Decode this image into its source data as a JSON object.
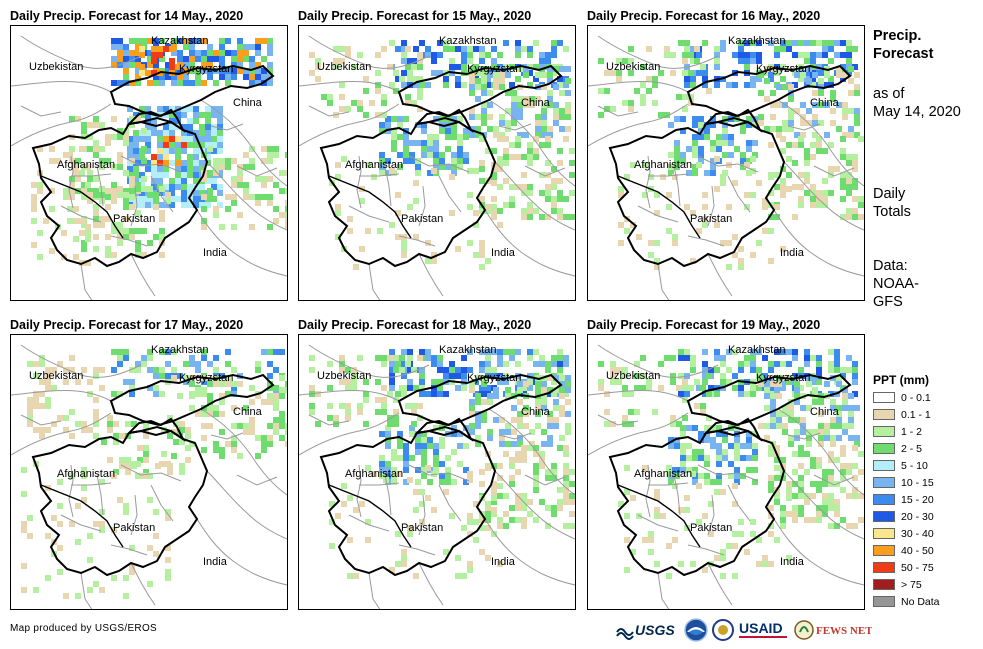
{
  "panels": [
    {
      "title": "Daily Precip. Forecast for 14 May., 2020",
      "level": "heavy"
    },
    {
      "title": "Daily Precip. Forecast for 15 May., 2020",
      "level": "moderate"
    },
    {
      "title": "Daily Precip. Forecast for 16 May., 2020",
      "level": "moderate"
    },
    {
      "title": "Daily Precip. Forecast for 17 May., 2020",
      "level": "light"
    },
    {
      "title": "Daily Precip. Forecast for 18 May., 2020",
      "level": "moderate"
    },
    {
      "title": "Daily Precip. Forecast for 19 May., 2020",
      "level": "moderate"
    }
  ],
  "map_labels": {
    "kazakhstan": "Kazakhstan",
    "uzbekistan": "Uzbekistan",
    "kyrgyzstan": "Kyrgyzstan",
    "china": "China",
    "afghanistan": "Afghanistan",
    "pakistan": "Pakistan",
    "india": "India"
  },
  "sidebar": {
    "title_line1": "Precip.",
    "title_line2": "Forecast",
    "asof_line1": "as of",
    "asof_line2": "May 14, 2020",
    "daily_line1": "Daily",
    "daily_line2": "Totals",
    "data_line1": "Data:",
    "data_line2": "NOAA-",
    "data_line3": "GFS"
  },
  "legend": {
    "title": "PPT (mm)",
    "items": [
      {
        "label": "0 - 0.1",
        "color": "#ffffff"
      },
      {
        "label": "0.1 - 1",
        "color": "#e8d6b0"
      },
      {
        "label": "1 - 2",
        "color": "#b4f0a0"
      },
      {
        "label": "2 - 5",
        "color": "#6edc6e"
      },
      {
        "label": "5 - 10",
        "color": "#b4eef8"
      },
      {
        "label": "10 - 15",
        "color": "#78b4f0"
      },
      {
        "label": "15 - 20",
        "color": "#3c8cf0"
      },
      {
        "label": "20 - 30",
        "color": "#1e5ae6"
      },
      {
        "label": "30 - 40",
        "color": "#fae68c"
      },
      {
        "label": "40 - 50",
        "color": "#fa9e1e"
      },
      {
        "label": "50 - 75",
        "color": "#f03c14"
      },
      {
        "label": "> 75",
        "color": "#a01e1e"
      },
      {
        "label": "No Data",
        "color": "#969696"
      }
    ]
  },
  "footer": {
    "credit": "Map produced by USGS/EROS"
  },
  "logos": {
    "usgs": "USGS",
    "usaid": "USAID",
    "fewsnet": "FEWS NET"
  }
}
